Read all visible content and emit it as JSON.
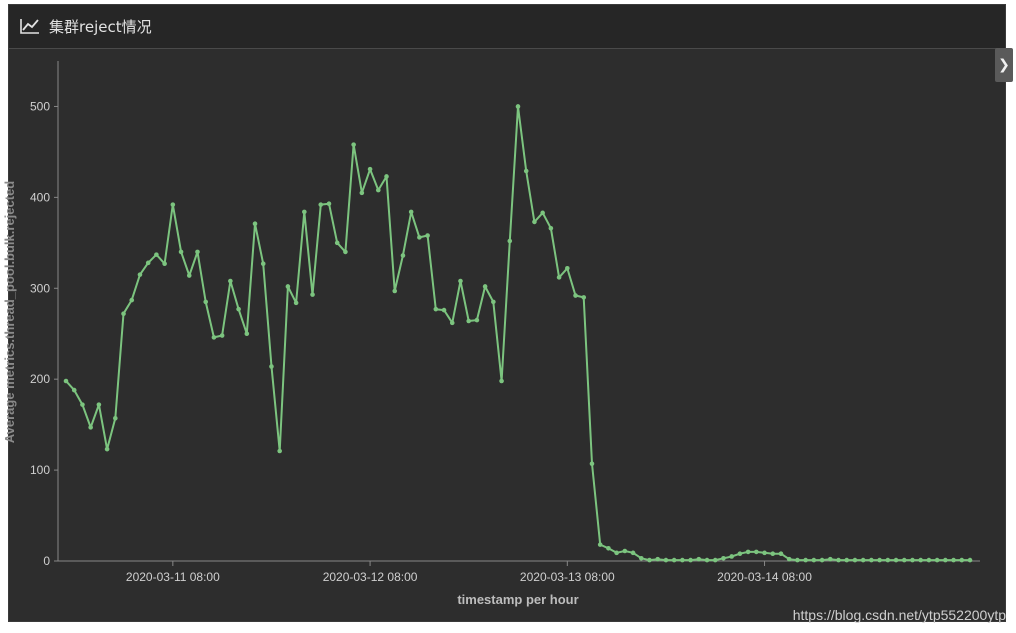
{
  "panel": {
    "title": "集群reject情况",
    "title_icon": "line-chart-icon",
    "expand_icon": "chevron-right-icon"
  },
  "watermark": "https://blog.csdn.net/ytp552200ytp",
  "colors": {
    "background": "#2d2d2d",
    "line": "#7cc47f",
    "axis": "#888888",
    "text": "#cfcfcf"
  },
  "chart_data": {
    "type": "line",
    "title": "",
    "xlabel": "timestamp per hour",
    "ylabel": "Average metrics.thread_pool.bulk.rejected",
    "ylim": [
      0,
      550
    ],
    "yticks": [
      0,
      100,
      200,
      300,
      400,
      500
    ],
    "x_tick_labels": [
      {
        "label": "2020-03-11 08:00",
        "index": 13
      },
      {
        "label": "2020-03-12 08:00",
        "index": 37
      },
      {
        "label": "2020-03-13 08:00",
        "index": 61
      },
      {
        "label": "2020-03-14 08:00",
        "index": 85
      }
    ],
    "grid": false,
    "series": [
      {
        "values": [
          198,
          188,
          172,
          147,
          172,
          123,
          157,
          272,
          287,
          315,
          328,
          337,
          327,
          392,
          340,
          314,
          340,
          285,
          246,
          248,
          308,
          277,
          250,
          371,
          327,
          214,
          121,
          302,
          284,
          384,
          293,
          392,
          393,
          350,
          340,
          458,
          405,
          431,
          408,
          423,
          297,
          336,
          384,
          356,
          358,
          277,
          276,
          262,
          308,
          264,
          265,
          302,
          285,
          198,
          352,
          500,
          429,
          373,
          383,
          366,
          312,
          322,
          292,
          290,
          107,
          18,
          14,
          9,
          11,
          9,
          3,
          1,
          2,
          1,
          1,
          1,
          1,
          2,
          1,
          1,
          3,
          5,
          8,
          10,
          10,
          9,
          8,
          8,
          2,
          1,
          1,
          1,
          1,
          2,
          1,
          1,
          1,
          1,
          1,
          1,
          1,
          1,
          1,
          1,
          1,
          1,
          1,
          1,
          1,
          1,
          1
        ]
      }
    ]
  }
}
